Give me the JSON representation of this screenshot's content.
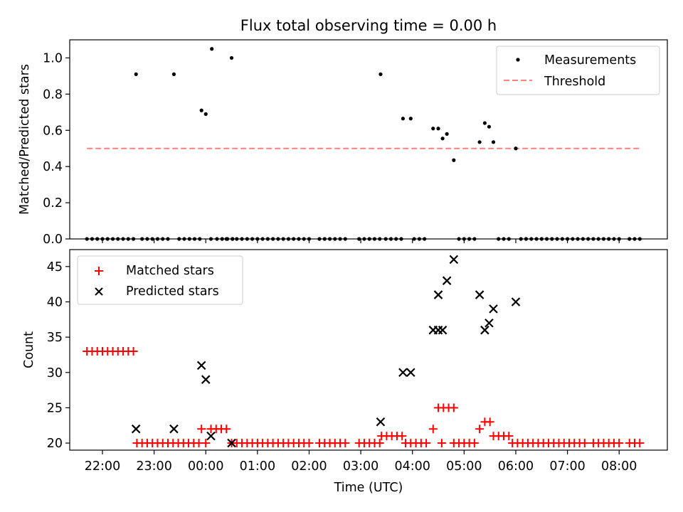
{
  "figure": {
    "title": "Flux total observing time = 0.00 h",
    "xlabel": "Time (UTC)"
  },
  "chart_data": [
    {
      "type": "scatter",
      "ylabel": "Matched/Predicted stars",
      "xlim": [
        "21:22",
        "08:56"
      ],
      "ylim": [
        0,
        1.1
      ],
      "yticks": [
        0.0,
        0.2,
        0.4,
        0.6,
        0.8,
        1.0
      ],
      "legend": {
        "position": "top-right"
      },
      "series": [
        {
          "name": "Measurements",
          "marker": "dot",
          "color": "#000000",
          "points": [
            [
              "21:42",
              0
            ],
            [
              "21:48",
              0
            ],
            [
              "21:54",
              0
            ],
            [
              "22:00",
              0
            ],
            [
              "22:06",
              0
            ],
            [
              "22:12",
              0
            ],
            [
              "22:18",
              0
            ],
            [
              "22:24",
              0
            ],
            [
              "22:30",
              0
            ],
            [
              "22:36",
              0
            ],
            [
              "22:39",
              0.91
            ],
            [
              "22:46",
              0
            ],
            [
              "22:52",
              0
            ],
            [
              "22:58",
              0
            ],
            [
              "23:04",
              0
            ],
            [
              "23:10",
              0
            ],
            [
              "23:16",
              0
            ],
            [
              "23:23",
              0.91
            ],
            [
              "23:29",
              0
            ],
            [
              "23:35",
              0
            ],
            [
              "23:41",
              0
            ],
            [
              "23:47",
              0
            ],
            [
              "23:53",
              0
            ],
            [
              "23:55",
              0.71
            ],
            [
              "00:00",
              0.69
            ],
            [
              "00:06",
              0
            ],
            [
              "00:07",
              1.05
            ],
            [
              "00:13",
              0
            ],
            [
              "00:19",
              0
            ],
            [
              "00:25",
              0
            ],
            [
              "00:31",
              0
            ],
            [
              "00:25",
              0
            ],
            [
              "00:31",
              0
            ],
            [
              "00:24",
              0
            ],
            [
              "00:30",
              1.0
            ],
            [
              "00:36",
              0
            ],
            [
              "00:42",
              0
            ],
            [
              "00:48",
              0
            ],
            [
              "00:54",
              0
            ],
            [
              "01:00",
              0
            ],
            [
              "01:06",
              0
            ],
            [
              "01:12",
              0
            ],
            [
              "01:18",
              0
            ],
            [
              "01:24",
              0
            ],
            [
              "01:30",
              0
            ],
            [
              "01:36",
              0
            ],
            [
              "01:42",
              0
            ],
            [
              "01:48",
              0
            ],
            [
              "01:54",
              0
            ],
            [
              "02:00",
              0
            ],
            [
              "02:12",
              0
            ],
            [
              "02:18",
              0
            ],
            [
              "02:24",
              0
            ],
            [
              "02:30",
              0
            ],
            [
              "02:36",
              0
            ],
            [
              "02:42",
              0
            ],
            [
              "02:58",
              0
            ],
            [
              "03:04",
              0
            ],
            [
              "03:10",
              0
            ],
            [
              "03:16",
              0
            ],
            [
              "03:22",
              0
            ],
            [
              "03:23",
              0.91
            ],
            [
              "03:29",
              0
            ],
            [
              "03:35",
              0
            ],
            [
              "03:41",
              0
            ],
            [
              "03:47",
              0
            ],
            [
              "03:49",
              0.665
            ],
            [
              "03:58",
              0.665
            ],
            [
              "04:02",
              0
            ],
            [
              "04:08",
              0
            ],
            [
              "04:14",
              0
            ],
            [
              "04:24",
              0.61
            ],
            [
              "04:30",
              0.61
            ],
            [
              "04:35",
              0.555
            ],
            [
              "04:40",
              0.58
            ],
            [
              "04:48",
              0.435
            ],
            [
              "04:54",
              0
            ],
            [
              "05:00",
              0
            ],
            [
              "05:06",
              0
            ],
            [
              "05:12",
              0
            ],
            [
              "05:18",
              0.535
            ],
            [
              "05:24",
              0.64
            ],
            [
              "05:29",
              0.62
            ],
            [
              "05:34",
              0.535
            ],
            [
              "05:40",
              0
            ],
            [
              "05:46",
              0
            ],
            [
              "05:52",
              0
            ],
            [
              "06:00",
              0.5
            ],
            [
              "06:06",
              0
            ],
            [
              "06:12",
              0
            ],
            [
              "06:18",
              0
            ],
            [
              "06:24",
              0
            ],
            [
              "06:30",
              0
            ],
            [
              "06:36",
              0
            ],
            [
              "06:42",
              0
            ],
            [
              "06:48",
              0
            ],
            [
              "06:54",
              0
            ],
            [
              "07:00",
              0
            ],
            [
              "07:06",
              0
            ],
            [
              "07:12",
              0
            ],
            [
              "07:18",
              0
            ],
            [
              "07:24",
              0
            ],
            [
              "07:30",
              0
            ],
            [
              "07:36",
              0
            ],
            [
              "07:42",
              0
            ],
            [
              "07:48",
              0
            ],
            [
              "07:54",
              0
            ],
            [
              "08:00",
              0
            ],
            [
              "08:12",
              0
            ],
            [
              "08:18",
              0
            ],
            [
              "08:24",
              0
            ]
          ]
        },
        {
          "name": "Threshold",
          "marker": "dashed-line",
          "color": "#ff7f7f",
          "points": [
            [
              "21:42",
              0.5
            ],
            [
              "08:24",
              0.5
            ]
          ]
        }
      ]
    },
    {
      "type": "scatter",
      "ylabel": "Count",
      "xlim": [
        "21:22",
        "08:56"
      ],
      "ylim": [
        19,
        47.4
      ],
      "yticks": [
        20,
        25,
        30,
        35,
        40,
        45
      ],
      "xticks": [
        "22:00",
        "23:00",
        "00:00",
        "01:00",
        "02:00",
        "03:00",
        "04:00",
        "05:00",
        "06:00",
        "07:00",
        "08:00"
      ],
      "legend": {
        "position": "top-left"
      },
      "series": [
        {
          "name": "Matched stars",
          "marker": "plus",
          "color": "#ff0000",
          "points": [
            [
              "21:42",
              33
            ],
            [
              "21:48",
              33
            ],
            [
              "21:54",
              33
            ],
            [
              "22:00",
              33
            ],
            [
              "22:06",
              33
            ],
            [
              "22:12",
              33
            ],
            [
              "22:18",
              33
            ],
            [
              "22:24",
              33
            ],
            [
              "22:30",
              33
            ],
            [
              "22:36",
              33
            ],
            [
              "22:40",
              20
            ],
            [
              "22:46",
              20
            ],
            [
              "22:52",
              20
            ],
            [
              "22:58",
              20
            ],
            [
              "23:04",
              20
            ],
            [
              "23:10",
              20
            ],
            [
              "23:16",
              20
            ],
            [
              "23:22",
              20
            ],
            [
              "23:28",
              20
            ],
            [
              "23:34",
              20
            ],
            [
              "23:40",
              20
            ],
            [
              "23:46",
              20
            ],
            [
              "23:52",
              20
            ],
            [
              "23:55",
              22
            ],
            [
              "00:00",
              20
            ],
            [
              "00:06",
              22
            ],
            [
              "00:12",
              22
            ],
            [
              "00:18",
              22
            ],
            [
              "00:24",
              22
            ],
            [
              "00:30",
              20
            ],
            [
              "00:36",
              20
            ],
            [
              "00:42",
              20
            ],
            [
              "00:48",
              20
            ],
            [
              "00:54",
              20
            ],
            [
              "01:00",
              20
            ],
            [
              "01:06",
              20
            ],
            [
              "01:12",
              20
            ],
            [
              "01:18",
              20
            ],
            [
              "01:24",
              20
            ],
            [
              "01:30",
              20
            ],
            [
              "01:36",
              20
            ],
            [
              "01:42",
              20
            ],
            [
              "01:48",
              20
            ],
            [
              "01:54",
              20
            ],
            [
              "02:00",
              20
            ],
            [
              "02:12",
              20
            ],
            [
              "02:18",
              20
            ],
            [
              "02:24",
              20
            ],
            [
              "02:30",
              20
            ],
            [
              "02:36",
              20
            ],
            [
              "02:42",
              20
            ],
            [
              "02:58",
              20
            ],
            [
              "03:04",
              20
            ],
            [
              "03:10",
              20
            ],
            [
              "03:16",
              20
            ],
            [
              "03:22",
              20
            ],
            [
              "03:24",
              21
            ],
            [
              "03:30",
              21
            ],
            [
              "03:36",
              21
            ],
            [
              "03:42",
              21
            ],
            [
              "03:48",
              21
            ],
            [
              "03:52",
              20
            ],
            [
              "03:58",
              20
            ],
            [
              "04:04",
              20
            ],
            [
              "04:10",
              20
            ],
            [
              "04:16",
              20
            ],
            [
              "04:24",
              22
            ],
            [
              "04:30",
              25
            ],
            [
              "04:36",
              25
            ],
            [
              "04:42",
              25
            ],
            [
              "04:48",
              25
            ],
            [
              "04:34",
              20
            ],
            [
              "04:48",
              20
            ],
            [
              "04:54",
              20
            ],
            [
              "05:00",
              20
            ],
            [
              "05:06",
              20
            ],
            [
              "05:12",
              20
            ],
            [
              "05:18",
              22
            ],
            [
              "05:24",
              23
            ],
            [
              "05:30",
              23
            ],
            [
              "05:34",
              21
            ],
            [
              "05:40",
              21
            ],
            [
              "05:46",
              21
            ],
            [
              "05:52",
              21
            ],
            [
              "05:56",
              20
            ],
            [
              "06:02",
              20
            ],
            [
              "06:08",
              20
            ],
            [
              "06:14",
              20
            ],
            [
              "06:20",
              20
            ],
            [
              "06:26",
              20
            ],
            [
              "06:32",
              20
            ],
            [
              "06:38",
              20
            ],
            [
              "06:44",
              20
            ],
            [
              "06:50",
              20
            ],
            [
              "06:56",
              20
            ],
            [
              "07:02",
              20
            ],
            [
              "07:08",
              20
            ],
            [
              "07:14",
              20
            ],
            [
              "07:20",
              20
            ],
            [
              "07:30",
              20
            ],
            [
              "07:36",
              20
            ],
            [
              "07:42",
              20
            ],
            [
              "07:48",
              20
            ],
            [
              "07:54",
              20
            ],
            [
              "08:00",
              20
            ],
            [
              "08:12",
              20
            ],
            [
              "08:18",
              20
            ],
            [
              "08:24",
              20
            ]
          ]
        },
        {
          "name": "Predicted stars",
          "marker": "x",
          "color": "#000000",
          "points": [
            [
              "22:39",
              22
            ],
            [
              "23:23",
              22
            ],
            [
              "23:55",
              31
            ],
            [
              "00:00",
              29
            ],
            [
              "00:06",
              21
            ],
            [
              "00:30",
              20
            ],
            [
              "03:23",
              23
            ],
            [
              "03:49",
              30
            ],
            [
              "03:58",
              30
            ],
            [
              "04:24",
              36
            ],
            [
              "04:30",
              41
            ],
            [
              "04:30",
              36
            ],
            [
              "04:35",
              36
            ],
            [
              "04:40",
              43
            ],
            [
              "04:48",
              46
            ],
            [
              "05:18",
              41
            ],
            [
              "05:24",
              36
            ],
            [
              "05:29",
              37
            ],
            [
              "05:34",
              39
            ],
            [
              "06:00",
              40
            ]
          ]
        }
      ]
    }
  ]
}
